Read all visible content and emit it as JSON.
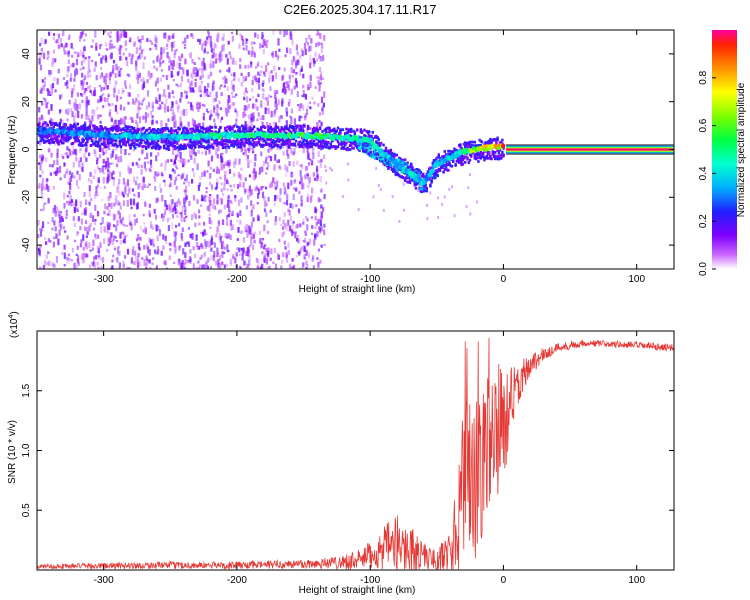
{
  "title": "C2E6.2025.304.17.11.R17",
  "chart_data": [
    {
      "type": "heatmap",
      "name": "spectrogram",
      "xlabel": "Height of straight line (km)",
      "ylabel": "Frequency (Hz)",
      "xlim": [
        -350,
        128
      ],
      "ylim": [
        -50,
        50
      ],
      "xticks": [
        {
          "value": -300,
          "label": "-300"
        },
        {
          "value": -200,
          "label": "-200"
        },
        {
          "value": -100,
          "label": "-100"
        },
        {
          "value": 0,
          "label": "0"
        },
        {
          "value": 100,
          "label": "100"
        }
      ],
      "yticks": [
        {
          "value": -40,
          "label": "-40"
        },
        {
          "value": -20,
          "label": "-20"
        },
        {
          "value": 0,
          "label": "0"
        },
        {
          "value": 20,
          "label": "20"
        },
        {
          "value": 40,
          "label": "40"
        }
      ],
      "ridge": {
        "x": [
          -350,
          -300,
          -250,
          -200,
          -150,
          -120,
          -100,
          -90,
          -80,
          -70,
          -60,
          -50,
          -40,
          -30,
          -20,
          -10,
          0,
          20,
          60,
          128
        ],
        "y": [
          8,
          6,
          5,
          6,
          6,
          5,
          4,
          -2,
          -6,
          -10,
          -14,
          -6,
          -3,
          -1,
          0,
          1,
          1,
          0,
          0,
          0
        ],
        "amplitude": [
          0.3,
          0.35,
          0.4,
          0.5,
          0.55,
          0.5,
          0.45,
          0.4,
          0.35,
          0.45,
          0.4,
          0.35,
          0.45,
          0.5,
          0.7,
          0.75,
          0.85,
          1.0,
          1.0,
          1.0
        ]
      },
      "secondary_branch": {
        "x": [
          -110,
          -100,
          -90,
          -80,
          -70,
          -60
        ],
        "y": [
          4,
          0,
          -3,
          -6,
          -9,
          -15
        ]
      },
      "noise_region_end": -140,
      "colorbar": {
        "label": "Normalized spectral amplitude",
        "range": [
          0,
          1
        ],
        "ticks": [
          {
            "value": 0.0,
            "label": "0.0"
          },
          {
            "value": 0.2,
            "label": "0.2"
          },
          {
            "value": 0.4,
            "label": "0.4"
          },
          {
            "value": 0.6,
            "label": "0.6"
          },
          {
            "value": 0.8,
            "label": "0.8"
          }
        ]
      }
    },
    {
      "type": "line",
      "name": "snr",
      "xlabel": "Height of straight line (km)",
      "ylabel": "SNR (10 * v/v)",
      "multiplier": "(x10",
      "multiplier_exp": "4",
      "multiplier_close": ")",
      "xlim": [
        -350,
        128
      ],
      "ylim": [
        0,
        2.0
      ],
      "color": "#e53935",
      "xticks": [
        {
          "value": -300,
          "label": "-300"
        },
        {
          "value": -200,
          "label": "-200"
        },
        {
          "value": -100,
          "label": "-100"
        },
        {
          "value": 0,
          "label": "0"
        },
        {
          "value": 100,
          "label": "100"
        }
      ],
      "yticks": [
        {
          "value": 0.5,
          "label": "0.5"
        },
        {
          "value": 1.0,
          "label": "1.0"
        },
        {
          "value": 1.5,
          "label": "1.5"
        }
      ],
      "envelope": {
        "x": [
          -350,
          -250,
          -200,
          -150,
          -130,
          -110,
          -100,
          -90,
          -80,
          -70,
          -60,
          -50,
          -40,
          -35,
          -30,
          -25,
          -20,
          -15,
          -10,
          -5,
          0,
          5,
          10,
          20,
          30,
          40,
          60,
          80,
          100,
          128
        ],
        "base": [
          0.03,
          0.04,
          0.04,
          0.05,
          0.06,
          0.08,
          0.12,
          0.18,
          0.22,
          0.18,
          0.12,
          0.08,
          0.15,
          0.3,
          0.55,
          0.6,
          0.75,
          0.9,
          1.0,
          1.1,
          1.2,
          1.35,
          1.55,
          1.72,
          1.8,
          1.86,
          1.9,
          1.89,
          1.88,
          1.86
        ],
        "spread": [
          0.02,
          0.03,
          0.03,
          0.04,
          0.05,
          0.08,
          0.12,
          0.18,
          0.25,
          0.2,
          0.12,
          0.08,
          0.2,
          0.45,
          0.75,
          0.8,
          0.7,
          0.6,
          0.55,
          0.5,
          0.45,
          0.35,
          0.2,
          0.1,
          0.06,
          0.04,
          0.03,
          0.03,
          0.03,
          0.03
        ]
      }
    }
  ]
}
